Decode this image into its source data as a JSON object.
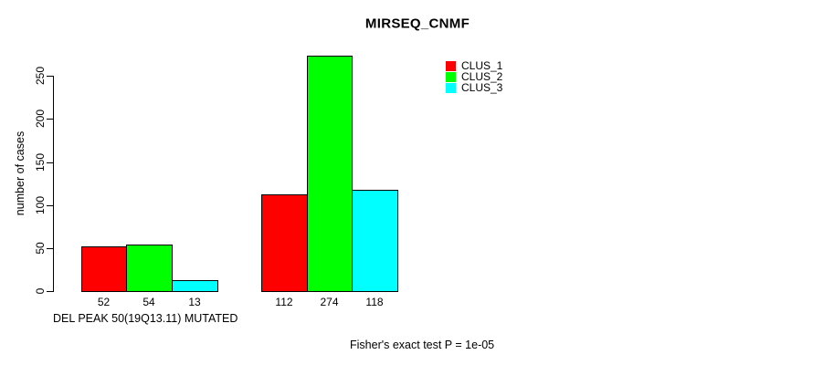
{
  "chart_data": {
    "type": "bar",
    "title": "MIRSEQ_CNMF",
    "ylabel": "number of cases",
    "xlabel": "DEL PEAK 50(19Q13.11) MUTATED",
    "annotation": "Fisher's exact test P = 1e-05",
    "yticks": [
      0,
      50,
      100,
      150,
      200,
      250
    ],
    "ylim": [
      0,
      250
    ],
    "grid": false,
    "legend_position": "top-right",
    "groups": [
      "group-1",
      "group-2"
    ],
    "series": [
      {
        "name": "CLUS_1",
        "color": "#ff0000",
        "values": [
          52,
          112
        ]
      },
      {
        "name": "CLUS_2",
        "color": "#00ff00",
        "values": [
          54,
          274
        ]
      },
      {
        "name": "CLUS_3",
        "color": "#00ffff",
        "values": [
          13,
          118
        ]
      }
    ],
    "bar_value_labels": [
      [
        52,
        54,
        13
      ],
      [
        112,
        274,
        118
      ]
    ],
    "colors": {
      "background": "#ffffff",
      "axis": "#000000",
      "text": "#000000"
    }
  }
}
